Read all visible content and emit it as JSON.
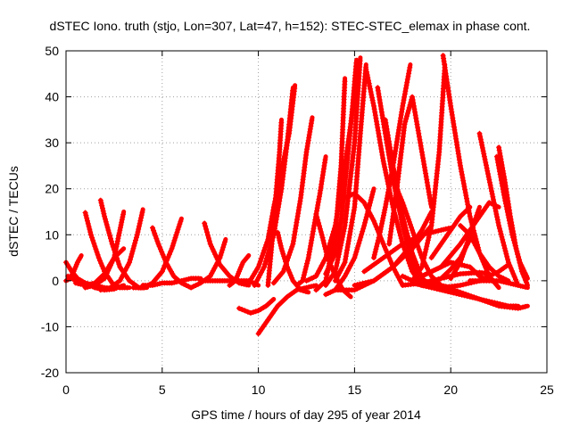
{
  "chart_data": {
    "type": "scatter",
    "title": "dSTEC Iono. truth (stjo, Lon=307, Lat=47, h=152): STEC-STEC_elemax in phase cont.",
    "xlabel": "GPS time / hours of day 295 of year 2014",
    "ylabel": "dSTEC  / TECUs",
    "xlim": [
      0,
      25
    ],
    "ylim": [
      -20,
      50
    ],
    "x_ticks": [
      "0",
      "5",
      "10",
      "15",
      "20",
      "25"
    ],
    "y_ticks": [
      "-20",
      "-10",
      "0",
      "10",
      "20",
      "30",
      "40",
      "50"
    ],
    "grid": true,
    "marker": "+",
    "colors": {
      "series": "#ff0000",
      "axis": "#000000",
      "grid": "#a0a0a0"
    },
    "arcs": [
      {
        "x": [
          0.0,
          0.3,
          0.6,
          1.0,
          1.5,
          2.0,
          2.5,
          3.0
        ],
        "y": [
          4.0,
          2.0,
          0.5,
          -0.5,
          -1.5,
          -2.0,
          -1.8,
          -1.0
        ]
      },
      {
        "x": [
          0.0,
          0.2,
          0.4,
          0.6,
          0.8
        ],
        "y": [
          0.0,
          0.5,
          2.0,
          4.0,
          5.5
        ]
      },
      {
        "x": [
          0.1,
          0.5,
          1.0,
          1.5,
          2.0,
          2.5
        ],
        "y": [
          1.0,
          0.0,
          -0.5,
          -1.0,
          -1.5,
          -1.8
        ]
      },
      {
        "x": [
          1.0,
          1.3,
          1.7,
          2.0,
          2.4,
          2.8,
          3.3
        ],
        "y": [
          14.8,
          10.0,
          5.0,
          2.0,
          -0.5,
          -1.5,
          -1.5
        ]
      },
      {
        "x": [
          0.5,
          1.0,
          1.5,
          2.0,
          2.5,
          3.0
        ],
        "y": [
          -0.5,
          -1.0,
          -0.5,
          1.5,
          5.0,
          7.0
        ]
      },
      {
        "x": [
          1.8,
          2.0,
          2.4,
          2.8,
          3.3,
          3.8,
          4.2
        ],
        "y": [
          17.5,
          14.0,
          8.0,
          3.0,
          0.0,
          -1.5,
          -1.5
        ]
      },
      {
        "x": [
          1.0,
          1.5,
          2.0,
          2.5,
          2.8,
          3.0
        ],
        "y": [
          -1.5,
          -1.0,
          0.5,
          5.0,
          11.0,
          15.0
        ]
      },
      {
        "x": [
          1.8,
          2.3,
          2.8,
          3.3,
          3.7,
          4.0
        ],
        "y": [
          -2.0,
          -1.5,
          0.0,
          4.0,
          10.0,
          15.5
        ]
      },
      {
        "x": [
          4.5,
          4.8,
          5.2,
          5.6,
          6.0,
          6.5
        ],
        "y": [
          11.5,
          8.0,
          4.0,
          1.0,
          -0.5,
          -1.5
        ]
      },
      {
        "x": [
          3.5,
          4.0,
          4.5,
          5.0,
          5.5,
          6.0
        ],
        "y": [
          -1.5,
          -1.5,
          -0.5,
          2.0,
          7.0,
          13.5
        ]
      },
      {
        "x": [
          4.0,
          4.5,
          5.0,
          5.5,
          6.0,
          6.5,
          7.0
        ],
        "y": [
          -1.0,
          -1.0,
          -0.5,
          -0.5,
          0.0,
          0.5,
          0.5
        ]
      },
      {
        "x": [
          7.2,
          7.5,
          8.0,
          8.5,
          9.0,
          9.5
        ],
        "y": [
          12.5,
          8.0,
          3.5,
          1.0,
          -0.5,
          -1.0
        ]
      },
      {
        "x": [
          6.5,
          7.0,
          7.5,
          8.0,
          8.3
        ],
        "y": [
          -1.5,
          -0.5,
          1.0,
          5.0,
          9.0
        ]
      },
      {
        "x": [
          7.0,
          7.5,
          8.0,
          8.5,
          9.0,
          9.5,
          10.0
        ],
        "y": [
          0.0,
          0.0,
          0.0,
          0.0,
          0.0,
          0.0,
          -1.0
        ]
      },
      {
        "x": [
          8.5,
          8.8,
          9.0,
          9.2,
          9.5
        ],
        "y": [
          -1.0,
          0.0,
          2.0,
          4.0,
          5.5
        ]
      },
      {
        "x": [
          9.0,
          9.3,
          9.6,
          10.0,
          10.4,
          10.8
        ],
        "y": [
          -6.0,
          -6.5,
          -7.0,
          -6.5,
          -5.5,
          -4.0
        ]
      },
      {
        "x": [
          10.0,
          10.5,
          11.0,
          11.5,
          12.0,
          12.5,
          13.0
        ],
        "y": [
          -11.5,
          -8.5,
          -5.5,
          -3.5,
          -2.0,
          -1.5,
          -1.0
        ]
      },
      {
        "x": [
          9.5,
          10.0,
          10.5,
          10.8,
          11.2,
          11.6,
          11.9
        ],
        "y": [
          -0.5,
          3.0,
          9.0,
          16.0,
          24.0,
          32.0,
          42.5
        ]
      },
      {
        "x": [
          9.8,
          10.3,
          10.8,
          11.2,
          11.5,
          11.8
        ],
        "y": [
          -1.0,
          3.0,
          10.0,
          20.0,
          30.0,
          42.0
        ]
      },
      {
        "x": [
          10.5,
          10.7,
          10.9,
          11.1,
          11.2
        ],
        "y": [
          -1.0,
          8.0,
          18.0,
          28.0,
          35.0
        ]
      },
      {
        "x": [
          10.8,
          11.3,
          11.8,
          12.2,
          12.5,
          12.8
        ],
        "y": [
          -0.5,
          2.0,
          8.0,
          18.0,
          28.0,
          35.5
        ]
      },
      {
        "x": [
          11.0,
          11.2,
          11.5,
          11.8,
          12.2,
          12.6
        ],
        "y": [
          10.5,
          7.0,
          3.0,
          0.0,
          -2.0,
          -2.5
        ]
      },
      {
        "x": [
          12.0,
          12.3,
          12.6,
          12.9,
          13.2,
          13.5
        ],
        "y": [
          -1.0,
          0.0,
          5.0,
          12.0,
          19.0,
          27.0
        ]
      },
      {
        "x": [
          13.0,
          13.3,
          13.6,
          14.0,
          14.4,
          14.8
        ],
        "y": [
          14.5,
          10.0,
          5.0,
          1.0,
          -2.0,
          -3.5
        ]
      },
      {
        "x": [
          12.5,
          13.0,
          13.5,
          14.0,
          14.5,
          15.0,
          15.2
        ],
        "y": [
          0.0,
          1.0,
          5.0,
          12.0,
          25.0,
          40.0,
          46.0
        ]
      },
      {
        "x": [
          13.5,
          14.0,
          14.3,
          14.6,
          14.9,
          15.1
        ],
        "y": [
          1.5,
          6.0,
          13.0,
          25.0,
          38.0,
          48.0
        ]
      },
      {
        "x": [
          13.0,
          13.5,
          14.0,
          14.3,
          14.5
        ],
        "y": [
          -2.0,
          0.0,
          10.0,
          25.0,
          44.0
        ]
      },
      {
        "x": [
          13.5,
          14.0,
          14.5,
          15.0,
          15.3
        ],
        "y": [
          -1.0,
          2.0,
          12.0,
          30.0,
          48.5
        ]
      },
      {
        "x": [
          14.0,
          14.5,
          15.0,
          15.3,
          15.6
        ],
        "y": [
          0.0,
          4.0,
          16.0,
          32.0,
          47.0
        ]
      },
      {
        "x": [
          15.6,
          16.0,
          16.5,
          17.0,
          17.5,
          18.0,
          18.5
        ],
        "y": [
          46.0,
          38.0,
          26.0,
          16.0,
          8.0,
          2.0,
          -1.0
        ]
      },
      {
        "x": [
          16.2,
          16.6,
          17.0,
          17.5,
          18.0,
          18.5
        ],
        "y": [
          42.0,
          32.0,
          22.0,
          12.0,
          4.0,
          0.0
        ]
      },
      {
        "x": [
          16.6,
          17.0,
          17.5,
          18.0,
          18.5,
          19.0
        ],
        "y": [
          35.0,
          25.0,
          14.0,
          6.0,
          0.5,
          -1.0
        ]
      },
      {
        "x": [
          16.0,
          16.3,
          16.6,
          17.0,
          17.5,
          17.9
        ],
        "y": [
          5.0,
          10.0,
          16.0,
          25.0,
          38.0,
          47.0
        ]
      },
      {
        "x": [
          16.8,
          17.2,
          17.6,
          18.0,
          18.5,
          19.0
        ],
        "y": [
          8.0,
          20.0,
          34.0,
          40.0,
          28.0,
          16.0
        ]
      },
      {
        "x": [
          14.5,
          15.0,
          15.5,
          16.0,
          16.5,
          17.0,
          17.5
        ],
        "y": [
          18.0,
          19.0,
          17.0,
          13.0,
          8.0,
          3.0,
          -1.0
        ]
      },
      {
        "x": [
          13.5,
          14.0,
          14.5,
          15.0,
          15.5,
          16.0
        ],
        "y": [
          -3.0,
          -2.0,
          1.0,
          5.0,
          12.0,
          20.0
        ]
      },
      {
        "x": [
          14.0,
          15.0,
          16.0,
          17.0,
          18.0,
          19.0
        ],
        "y": [
          -2.0,
          -2.0,
          0.0,
          3.0,
          7.0,
          12.0
        ]
      },
      {
        "x": [
          15.0,
          16.0,
          17.0,
          18.0,
          18.5,
          19.0
        ],
        "y": [
          -1.0,
          0.0,
          3.0,
          8.0,
          11.0,
          15.0
        ]
      },
      {
        "x": [
          15.5,
          16.5,
          17.5,
          18.5,
          19.5,
          20.0
        ],
        "y": [
          2.0,
          5.0,
          8.0,
          10.0,
          11.0,
          11.5
        ]
      },
      {
        "x": [
          17.0,
          17.5,
          18.0,
          18.5,
          19.0,
          19.5,
          20.0
        ],
        "y": [
          22.0,
          17.0,
          11.0,
          5.0,
          1.0,
          -1.0,
          -1.5
        ]
      },
      {
        "x": [
          19.6,
          20.0,
          20.5,
          21.0,
          21.5,
          22.0,
          22.5
        ],
        "y": [
          49.0,
          38.0,
          25.0,
          14.0,
          6.0,
          1.0,
          -1.5
        ]
      },
      {
        "x": [
          18.0,
          18.5,
          19.0,
          19.4,
          19.7
        ],
        "y": [
          0.0,
          3.0,
          12.0,
          28.0,
          47.0
        ]
      },
      {
        "x": [
          18.5,
          19.0,
          19.5,
          20.0,
          20.5,
          21.0
        ],
        "y": [
          -1.0,
          -0.5,
          0.5,
          2.5,
          5.0,
          9.0
        ]
      },
      {
        "x": [
          18.0,
          19.0,
          20.0,
          21.0,
          21.5,
          22.0
        ],
        "y": [
          0.0,
          2.0,
          4.0,
          3.0,
          1.0,
          0.0
        ]
      },
      {
        "x": [
          18.5,
          19.5,
          20.5,
          21.5,
          22.0,
          22.5
        ],
        "y": [
          1.0,
          3.0,
          8.0,
          14.0,
          17.0,
          16.0
        ]
      },
      {
        "x": [
          17.5,
          18.5,
          19.5,
          20.5,
          21.5,
          22.5,
          23.0
        ],
        "y": [
          1.0,
          -1.0,
          -1.5,
          -1.0,
          0.0,
          2.0,
          3.5
        ]
      },
      {
        "x": [
          18.5,
          19.5,
          20.5,
          21.5,
          22.5,
          23.5,
          24.0
        ],
        "y": [
          0.0,
          -1.0,
          -2.5,
          -4.0,
          -5.5,
          -6.0,
          -5.5
        ]
      },
      {
        "x": [
          17.5,
          18.5,
          19.5,
          20.5,
          21.5,
          22.0
        ],
        "y": [
          -1.0,
          -0.5,
          0.5,
          1.5,
          1.8,
          1.5
        ]
      },
      {
        "x": [
          19.0,
          19.5,
          20.0,
          20.5,
          21.0
        ],
        "y": [
          5.0,
          8.0,
          11.0,
          14.0,
          16.0
        ]
      },
      {
        "x": [
          20.0,
          20.5,
          21.0,
          21.5
        ],
        "y": [
          0.5,
          4.0,
          10.0,
          16.0
        ]
      },
      {
        "x": [
          18.0,
          19.0,
          20.0,
          21.0,
          22.0,
          23.0,
          23.5
        ],
        "y": [
          -0.5,
          -1.5,
          -2.5,
          -3.5,
          -4.5,
          -5.5,
          -5.5
        ]
      },
      {
        "x": [
          21.5,
          22.0,
          22.5,
          23.0,
          23.5
        ],
        "y": [
          32.0,
          22.0,
          12.0,
          4.0,
          -1.0
        ]
      },
      {
        "x": [
          22.5,
          22.8,
          23.1,
          23.4,
          23.7,
          24.0
        ],
        "y": [
          29.0,
          22.0,
          14.0,
          7.0,
          2.0,
          -1.0
        ]
      },
      {
        "x": [
          22.4,
          22.8,
          23.2,
          23.6,
          24.0
        ],
        "y": [
          27.0,
          18.0,
          10.0,
          4.0,
          0.5
        ]
      },
      {
        "x": [
          20.5,
          21.0,
          21.5,
          22.0,
          22.5,
          23.0
        ],
        "y": [
          12.0,
          10.0,
          6.0,
          3.0,
          1.0,
          0.0
        ]
      },
      {
        "x": [
          21.0,
          22.0,
          22.5,
          23.0,
          23.5,
          24.0
        ],
        "y": [
          0.0,
          0.0,
          0.0,
          -0.5,
          -1.0,
          -1.5
        ]
      }
    ]
  }
}
